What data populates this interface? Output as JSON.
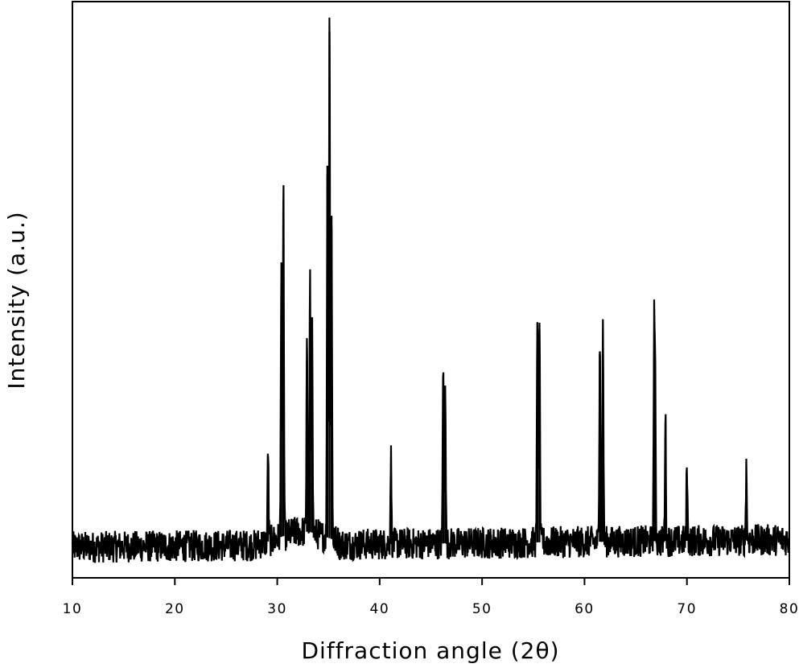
{
  "chart_data": {
    "type": "line",
    "title": "",
    "xlabel": "Diffraction angle (2θ)",
    "ylabel": "Intensity (a.u.)",
    "xlim": [
      10,
      80
    ],
    "ylim": [
      0,
      100
    ],
    "x_ticks": [
      10,
      20,
      30,
      40,
      50,
      60,
      70,
      80
    ],
    "x_tick_labels": [
      "10",
      "20",
      "30",
      "40",
      "50",
      "60",
      "70",
      "80"
    ],
    "y_ticks_shown": false,
    "grid": false,
    "legend": "none",
    "line_color": "#000000",
    "background_level": 5,
    "peaks": [
      {
        "x": 29.1,
        "y": 18
      },
      {
        "x": 30.4,
        "y": 53
      },
      {
        "x": 30.6,
        "y": 68
      },
      {
        "x": 32.9,
        "y": 38
      },
      {
        "x": 33.2,
        "y": 48
      },
      {
        "x": 33.4,
        "y": 45
      },
      {
        "x": 34.9,
        "y": 73
      },
      {
        "x": 35.1,
        "y": 100
      },
      {
        "x": 35.3,
        "y": 63
      },
      {
        "x": 41.1,
        "y": 17
      },
      {
        "x": 46.2,
        "y": 34
      },
      {
        "x": 46.4,
        "y": 32
      },
      {
        "x": 55.4,
        "y": 42
      },
      {
        "x": 55.6,
        "y": 44
      },
      {
        "x": 61.5,
        "y": 40
      },
      {
        "x": 61.8,
        "y": 42
      },
      {
        "x": 66.8,
        "y": 40
      },
      {
        "x": 66.9,
        "y": 28
      },
      {
        "x": 67.9,
        "y": 24
      },
      {
        "x": 70.0,
        "y": 15
      },
      {
        "x": 75.8,
        "y": 14
      }
    ]
  }
}
